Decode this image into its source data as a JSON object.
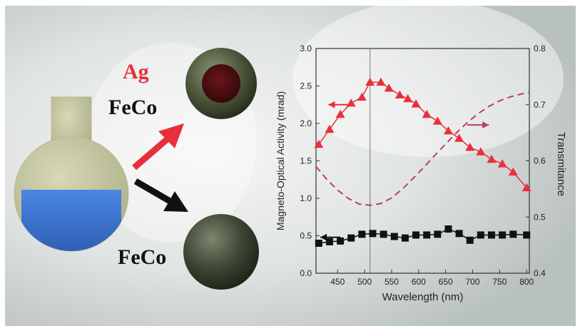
{
  "labels": {
    "ag": "Ag",
    "feco_top": "FeCo",
    "feco_bottom": "FeCo"
  },
  "colors": {
    "red": "#e8303c",
    "black": "#111111",
    "dashed": "#c03a66",
    "liquid": "#3d74d4",
    "flask": "#c5c59c"
  },
  "chart_data": {
    "type": "line",
    "xlabel": "Wavelength (nm)",
    "ylabel": "Magneto-Optical Activity (mrad)",
    "y2label": "Transmitance",
    "xlim": [
      410,
      805
    ],
    "ylim": [
      0.0,
      3.0
    ],
    "y2lim": [
      0.4,
      0.8
    ],
    "xticks": [
      "450",
      "500",
      "550",
      "600",
      "650",
      "700",
      "750",
      "800"
    ],
    "yticks": [
      "0.0",
      "0.5",
      "1.0",
      "1.5",
      "2.0",
      "2.5",
      "3.0"
    ],
    "y2ticks": [
      "0.4",
      "0.5",
      "0.6",
      "0.7",
      "0.8"
    ],
    "vline_x": 510,
    "series": [
      {
        "marker": "triangle",
        "color": "#e8303c",
        "axis": "left",
        "x": [
          415,
          435,
          455,
          475,
          495,
          510,
          530,
          545,
          565,
          580,
          595,
          615,
          635,
          655,
          675,
          695,
          715,
          735,
          755,
          775,
          800
        ],
        "y": [
          1.72,
          1.92,
          2.12,
          2.27,
          2.35,
          2.55,
          2.55,
          2.47,
          2.38,
          2.33,
          2.26,
          2.12,
          2.03,
          1.9,
          1.8,
          1.68,
          1.62,
          1.52,
          1.46,
          1.35,
          1.14
        ]
      },
      {
        "marker": "square",
        "color": "#111111",
        "axis": "left",
        "x": [
          415,
          435,
          455,
          475,
          495,
          515,
          535,
          555,
          575,
          595,
          615,
          635,
          655,
          675,
          695,
          715,
          735,
          755,
          775,
          800
        ],
        "y": [
          0.4,
          0.42,
          0.43,
          0.47,
          0.52,
          0.53,
          0.52,
          0.49,
          0.47,
          0.51,
          0.51,
          0.52,
          0.59,
          0.53,
          0.44,
          0.51,
          0.51,
          0.51,
          0.52,
          0.51
        ]
      },
      {
        "marker": "none",
        "style": "dashed",
        "color": "#c03a66",
        "axis": "right",
        "x": [
          410,
          430,
          450,
          470,
          490,
          510,
          530,
          550,
          570,
          590,
          610,
          630,
          650,
          670,
          690,
          710,
          730,
          750,
          770,
          790,
          805
        ],
        "y": [
          0.59,
          0.567,
          0.548,
          0.533,
          0.523,
          0.521,
          0.524,
          0.534,
          0.55,
          0.569,
          0.589,
          0.61,
          0.63,
          0.65,
          0.668,
          0.684,
          0.697,
          0.707,
          0.714,
          0.719,
          0.722
        ]
      }
    ]
  }
}
